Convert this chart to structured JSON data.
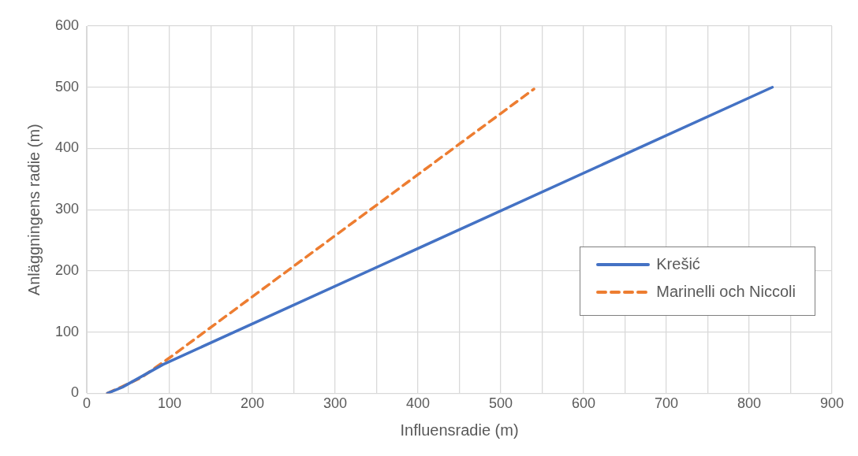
{
  "chart_data": {
    "type": "line",
    "xlabel": "Influensradie (m)",
    "ylabel": "Anläggningens radie (m)",
    "xlim": [
      0,
      900
    ],
    "xticks": [
      0,
      {
        "value": 50,
        "label": null
      },
      100,
      {
        "value": 150,
        "label": null
      },
      200,
      {
        "value": 250,
        "label": null
      },
      300,
      {
        "value": 350,
        "label": null
      },
      400,
      {
        "value": 450,
        "label": null
      },
      500,
      {
        "value": 550,
        "label": null
      },
      600,
      {
        "value": 650,
        "label": null
      },
      700,
      {
        "value": 750,
        "label": null
      },
      800,
      {
        "value": 850,
        "label": null
      },
      900
    ],
    "ylim": [
      0,
      600
    ],
    "yticks": [
      0,
      100,
      200,
      300,
      400,
      500,
      600
    ],
    "grid": true,
    "legend": "right",
    "marker": "none",
    "series": [
      {
        "name": "Krešić",
        "color": "#4472c4",
        "line_style": "solid",
        "x": [
          25,
          43,
          92,
          828
        ],
        "values": [
          0,
          10,
          47,
          500
        ]
      },
      {
        "name": "Marinelli och Niccoli",
        "color": "#ed7d31",
        "line_style": "dashed",
        "x": [
          25,
          65,
          102,
          145,
          540
        ],
        "values": [
          0,
          25,
          60,
          103,
          497
        ]
      }
    ]
  }
}
